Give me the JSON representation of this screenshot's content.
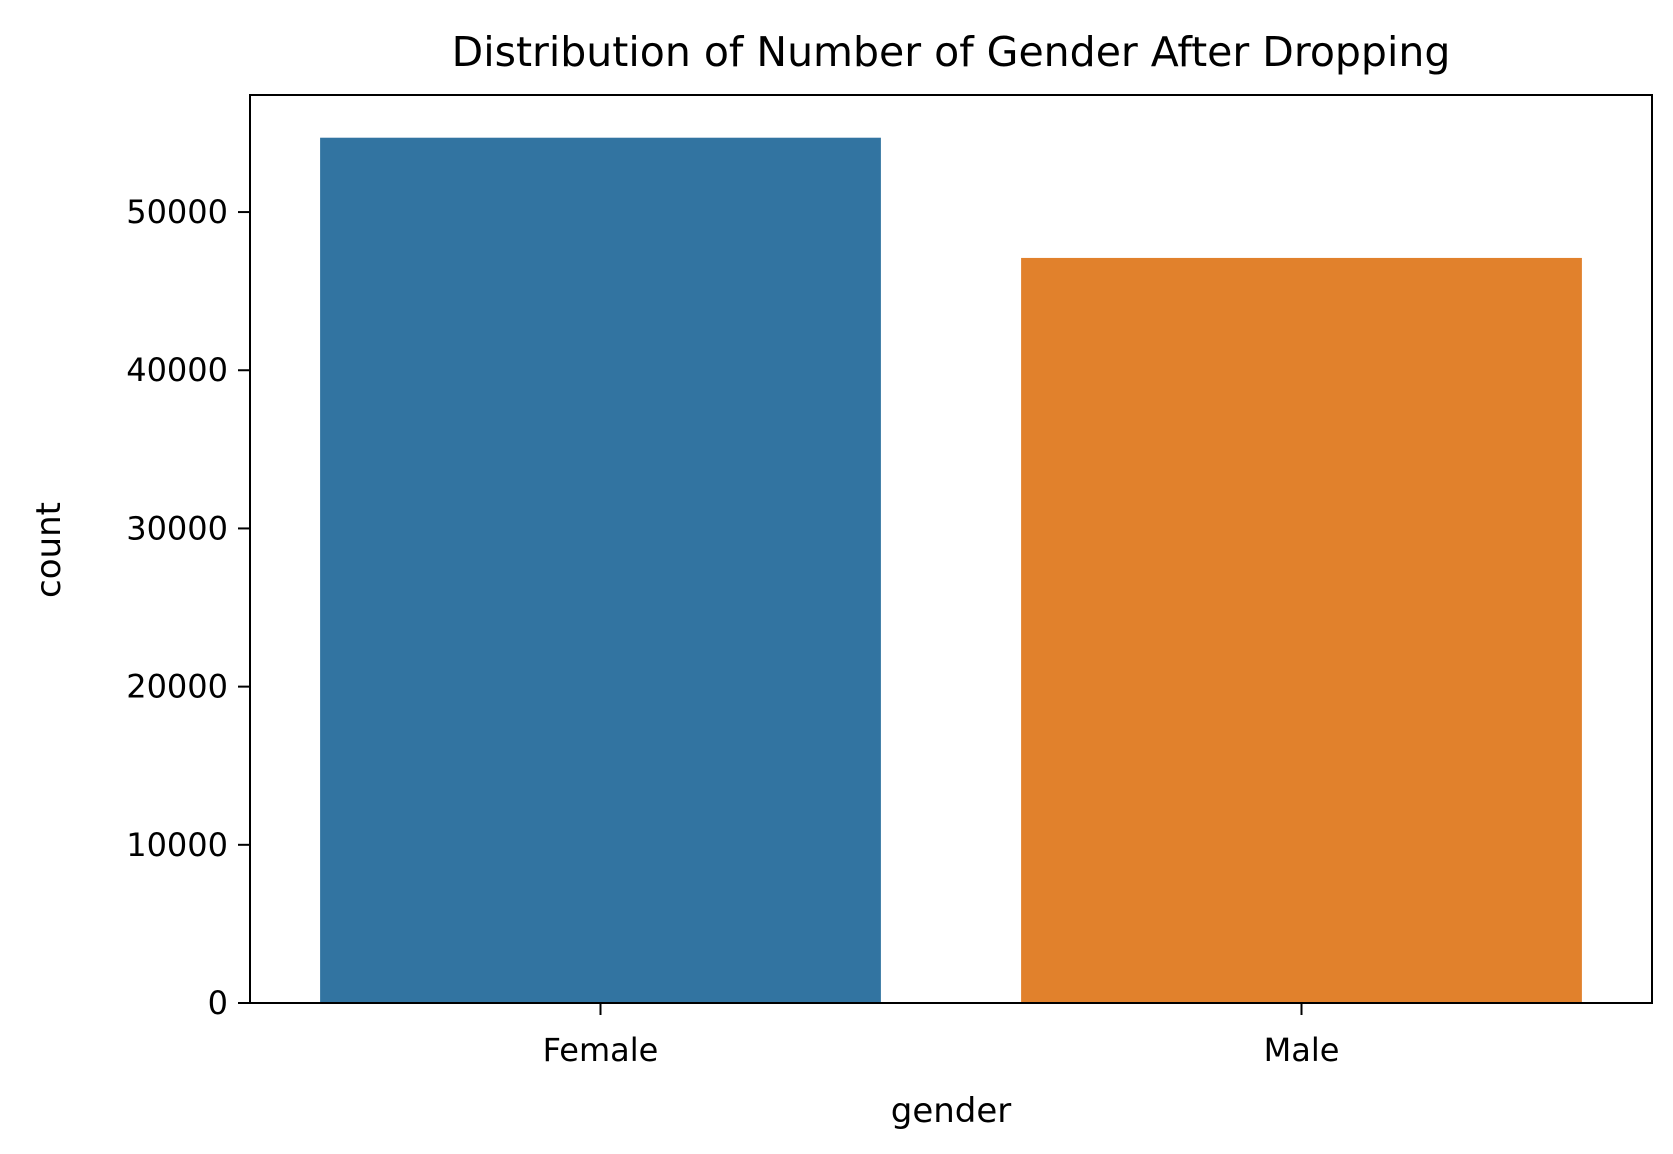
{
  "chart_data": {
    "type": "bar",
    "title": "Distribution of Number of Gender After Dropping",
    "xlabel": "gender",
    "ylabel": "count",
    "categories": [
      "Female",
      "Male"
    ],
    "values": [
      54700,
      47100
    ],
    "colors": [
      "#3274a1",
      "#e1812c"
    ],
    "ylim": [
      0,
      57400
    ],
    "yticks": [
      0,
      10000,
      20000,
      30000,
      40000,
      50000
    ],
    "grid": false
  }
}
